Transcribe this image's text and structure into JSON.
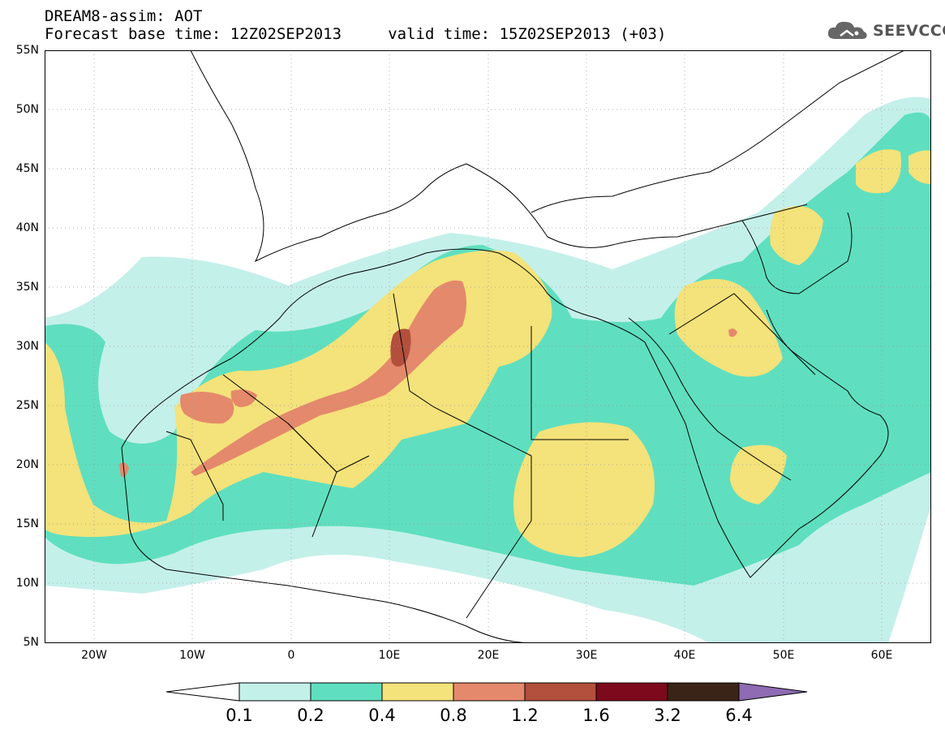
{
  "header": {
    "title": "DREAM8-assim: AOT",
    "subtitle": "Forecast base time: 12Z02SEP2013     valid time: 15Z02SEP2013 (+03)"
  },
  "logo": {
    "text": "SEEVCCC",
    "icon": "cloud-icon"
  },
  "map": {
    "lat_labels": [
      "55N",
      "50N",
      "45N",
      "40N",
      "35N",
      "30N",
      "25N",
      "20N",
      "15N",
      "10N",
      "5N"
    ],
    "lon_labels": [
      "20W",
      "10W",
      "0",
      "10E",
      "20E",
      "30E",
      "40E",
      "50E",
      "60E"
    ],
    "lat_range": [
      5,
      55
    ],
    "lon_range": [
      -25,
      65
    ],
    "grid": true,
    "field": "AOT"
  },
  "legend": {
    "levels": [
      "0.1",
      "0.2",
      "0.4",
      "0.8",
      "1.2",
      "1.6",
      "3.2",
      "6.4"
    ],
    "colors": [
      "#c4f0ea",
      "#5fdfbf",
      "#f4e27a",
      "#e4896b",
      "#b34f3d",
      "#7c0a1c",
      "#3a2418",
      "#8e6bb2"
    ],
    "extend": "both"
  },
  "colors": {
    "c1": "#c4f0ea",
    "c2": "#5fdfbf",
    "c3": "#f4e27a",
    "c4": "#e4896b",
    "c5": "#b34f3d",
    "c6": "#7c0a1c",
    "c7": "#3a2418",
    "c8": "#8e6bb2"
  }
}
